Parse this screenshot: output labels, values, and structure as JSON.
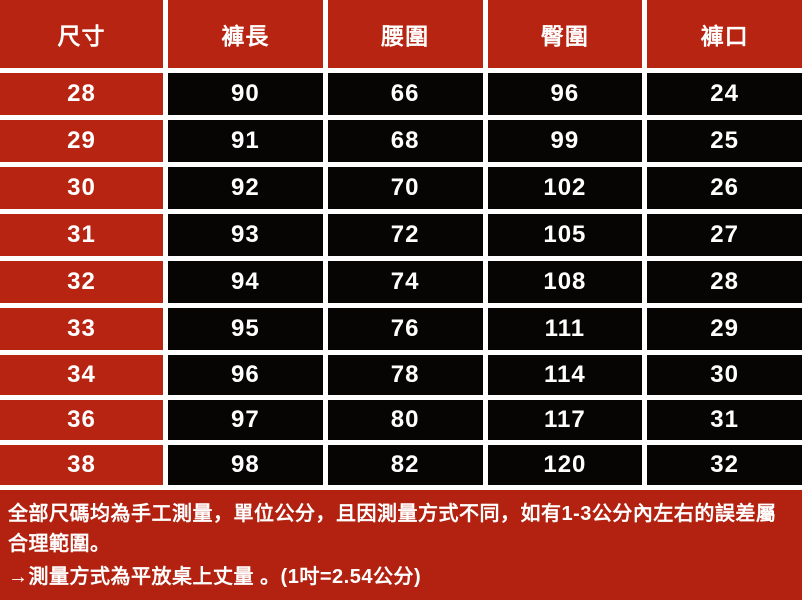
{
  "theme": {
    "page_red": "#b32210",
    "cell_red": "#b82412",
    "cell_black": "#060504",
    "grid_line": "#ffffff",
    "text_white": "#ffffff"
  },
  "chart_data": {
    "type": "table",
    "columns": [
      "尺寸",
      "褲長",
      "腰圍",
      "臀圍",
      "褲口"
    ],
    "rows": [
      [
        "28",
        "90",
        "66",
        "96",
        "24"
      ],
      [
        "29",
        "91",
        "68",
        "99",
        "25"
      ],
      [
        "30",
        "92",
        "70",
        "102",
        "26"
      ],
      [
        "31",
        "93",
        "72",
        "105",
        "27"
      ],
      [
        "32",
        "94",
        "74",
        "108",
        "28"
      ],
      [
        "33",
        "95",
        "76",
        "111",
        "29"
      ],
      [
        "34",
        "96",
        "78",
        "114",
        "30"
      ],
      [
        "36",
        "97",
        "80",
        "117",
        "31"
      ],
      [
        "38",
        "98",
        "82",
        "120",
        "32"
      ]
    ]
  },
  "notes": {
    "lines": [
      "全部尺碼均為手工測量，單位公分，且因測量方式不同，如有1-3公分內左右的誤差屬",
      "合理範圍。",
      "→測量方式為平放桌上丈量 。(1吋=2.54公分)"
    ]
  }
}
